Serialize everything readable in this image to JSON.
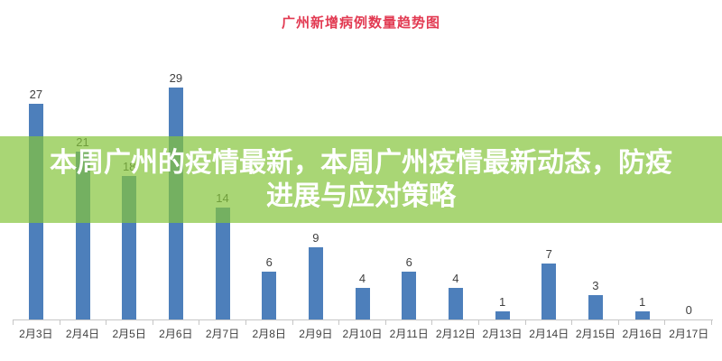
{
  "chart": {
    "title": "广州新增病例数量趋势图",
    "title_color": "#e23a52",
    "bar_color": "#4d7fbb",
    "axis_color": "#c6c6c6",
    "value_label_color": "#404040"
  },
  "chart_data": {
    "type": "bar",
    "title": "广州新增病例数量趋势图",
    "categories": [
      "2月3日",
      "2月4日",
      "2月5日",
      "2月6日",
      "2月7日",
      "2月8日",
      "2月9日",
      "2月10日",
      "2月11日",
      "2月12日",
      "2月13日",
      "2月14日",
      "2月15日",
      "2月16日",
      "2月17日"
    ],
    "values": [
      27,
      21,
      18,
      29,
      14,
      6,
      9,
      4,
      6,
      4,
      1,
      7,
      3,
      1,
      0
    ],
    "xlabel": "",
    "ylabel": "",
    "ylim": [
      0,
      40
    ],
    "grid": false,
    "legend": false,
    "value_labels_shown": true
  },
  "banner": {
    "line1": "本周广州的疫情最新，本周广州疫情最新动态，防疫",
    "line2": "进展与应对策略",
    "background": "rgba(132,196,59,0.7)",
    "text_color": "#ffffff"
  }
}
